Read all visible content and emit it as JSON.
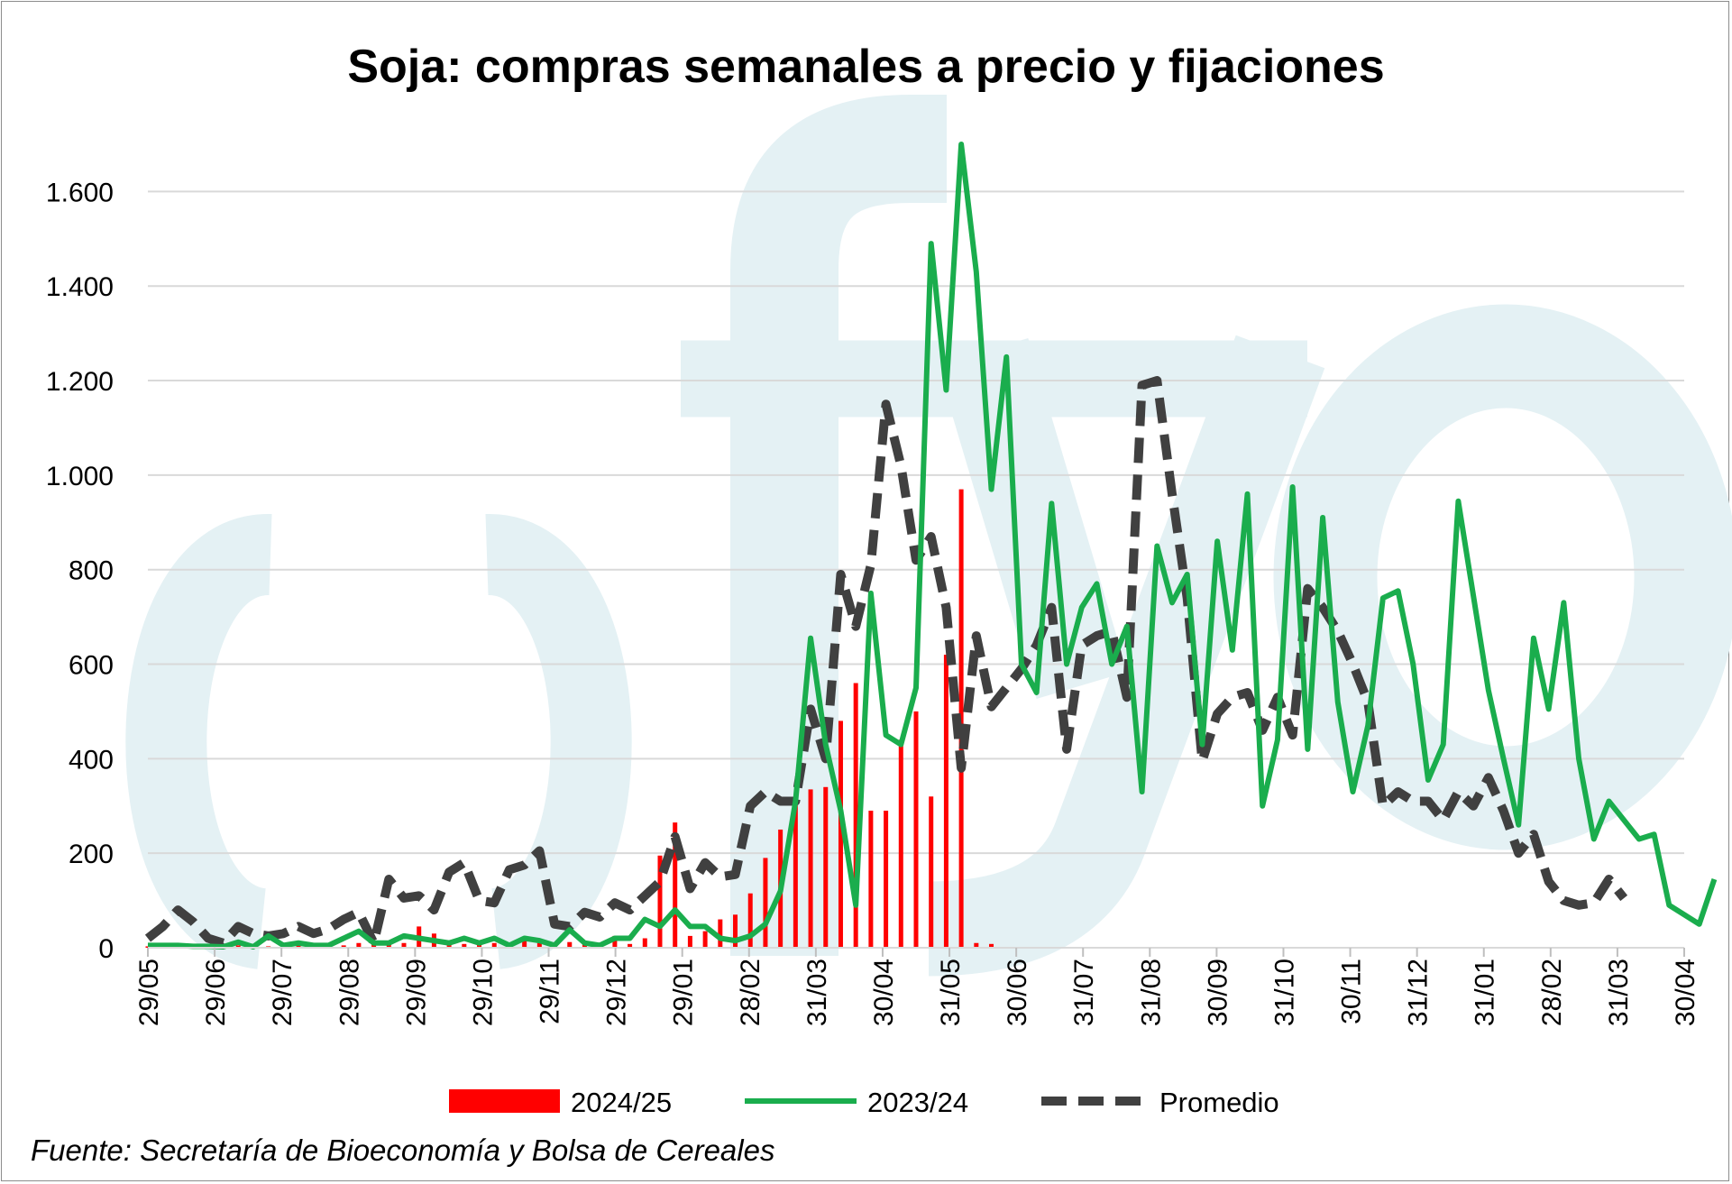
{
  "title": "Soja: compras semanales a precio y fijaciones",
  "source": "Fuente: Secretaría de Bioeconomía y Bolsa de Cereales",
  "colors": {
    "bars": "#ff0000",
    "line_2023": "#1aad4d",
    "line_avg": "#404040",
    "grid": "#d9d9d9",
    "watermark": "#e4f1f4"
  },
  "legend": {
    "position": "bottom",
    "items": [
      "2024/25",
      "2023/24",
      "Promedio"
    ]
  },
  "chart_data": {
    "type": "bar+line",
    "title": "Soja: compras semanales a precio y fijaciones",
    "ylim": [
      0,
      1700
    ],
    "yticks": [
      0,
      200,
      400,
      600,
      800,
      1000,
      1200,
      1400,
      1600
    ],
    "ytick_labels": [
      "0",
      "200",
      "400",
      "600",
      "800",
      "1.000",
      "1.200",
      "1.400",
      "1.600"
    ],
    "weeks": 103,
    "xtick_labels": [
      "29/05",
      "29/06",
      "29/07",
      "29/08",
      "29/09",
      "29/10",
      "29/11",
      "29/12",
      "29/01",
      "28/02",
      "31/03",
      "30/04",
      "31/05",
      "30/06",
      "31/07",
      "31/08",
      "30/09",
      "31/10",
      "30/11",
      "31/12",
      "31/01",
      "28/02",
      "31/03",
      "30/04"
    ],
    "grid": true,
    "series": [
      {
        "name": "2024/25",
        "type": "bar",
        "values": [
          3,
          3,
          3,
          3,
          2,
          3,
          5,
          4,
          3,
          5,
          5,
          5,
          6,
          5,
          10,
          8,
          8,
          10,
          45,
          30,
          10,
          8,
          10,
          10,
          5,
          15,
          10,
          10,
          12,
          15,
          10,
          25,
          8,
          20,
          195,
          265,
          25,
          35,
          60,
          70,
          115,
          190,
          250,
          310,
          335,
          340,
          480,
          560,
          290,
          290,
          440,
          500,
          320,
          620,
          970,
          10,
          8
        ]
      },
      {
        "name": "2023/24",
        "type": "line",
        "values": [
          5,
          5,
          5,
          3,
          3,
          2,
          12,
          2,
          25,
          5,
          10,
          5,
          5,
          20,
          35,
          10,
          10,
          25,
          20,
          15,
          10,
          20,
          10,
          20,
          5,
          20,
          15,
          5,
          38,
          10,
          5,
          20,
          20,
          60,
          45,
          80,
          45,
          45,
          20,
          15,
          25,
          50,
          120,
          310,
          655,
          430,
          290,
          90,
          750,
          450,
          430,
          550,
          1490,
          1180,
          1700,
          1430,
          970,
          1250,
          600,
          540,
          940,
          600,
          720,
          770,
          600,
          680,
          330,
          850,
          730,
          790,
          430,
          860,
          630,
          960,
          300,
          440,
          975,
          420,
          910,
          520,
          330,
          470,
          740,
          755,
          600,
          355,
          430,
          945,
          745,
          545,
          400,
          260,
          655,
          505,
          730,
          400,
          230,
          310,
          270,
          230,
          240,
          90,
          70,
          50,
          145
        ]
      },
      {
        "name": "Promedio",
        "type": "line",
        "values": [
          20,
          45,
          80,
          55,
          20,
          10,
          45,
          30,
          25,
          30,
          45,
          30,
          40,
          60,
          75,
          10,
          145,
          105,
          110,
          80,
          160,
          180,
          100,
          95,
          165,
          175,
          205,
          50,
          45,
          75,
          65,
          95,
          80,
          110,
          140,
          235,
          125,
          180,
          150,
          155,
          300,
          330,
          310,
          310,
          505,
          400,
          790,
          680,
          810,
          1150,
          1020,
          820,
          870,
          720,
          380,
          660,
          510,
          550,
          590,
          640,
          720,
          420,
          640,
          660,
          670,
          530,
          1190,
          1200,
          960,
          740,
          395,
          495,
          530,
          540,
          460,
          530,
          450,
          760,
          720,
          670,
          600,
          520,
          300,
          330,
          310,
          310,
          270,
          330,
          300,
          360,
          290,
          200,
          240,
          140,
          100,
          90,
          95,
          145,
          105
        ]
      }
    ]
  }
}
